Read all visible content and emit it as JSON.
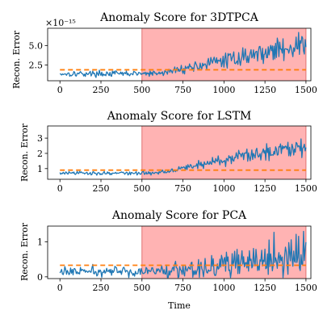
{
  "colors": {
    "signal": "#1f77b4",
    "threshold": "#ff7f0e",
    "anomaly_region": "#ff9a9a"
  },
  "chart_data": [
    {
      "type": "line",
      "title": "Anomaly Score for 3DTPCA",
      "xlabel": "",
      "ylabel": "Recon. Error",
      "offset_text": "×10⁻¹⁵",
      "xlim": [
        -75,
        1530
      ],
      "ylim": [
        0.5,
        7.2
      ],
      "xticks": [
        0,
        250,
        500,
        750,
        1000,
        1250,
        1500
      ],
      "yticks": [
        2.5,
        5.0
      ],
      "ytick_labels": [
        "2.5",
        "5.0"
      ],
      "anomaly_region": [
        500,
        1500
      ],
      "threshold": 1.9,
      "signal": {
        "x_start": 0,
        "x_end": 1500,
        "step": 5,
        "baseline": 1.4,
        "baseline_noise": 0.3,
        "ramp_start": 600,
        "end_level": 5.2,
        "end_noise": 1.3
      }
    },
    {
      "type": "line",
      "title": "Anomaly Score for LSTM",
      "xlabel": "",
      "ylabel": "Recon. Error",
      "xlim": [
        -75,
        1530
      ],
      "ylim": [
        0.3,
        3.8
      ],
      "xticks": [
        0,
        250,
        500,
        750,
        1000,
        1250,
        1500
      ],
      "yticks": [
        1,
        2,
        3
      ],
      "ytick_labels": [
        "1",
        "2",
        "3"
      ],
      "anomaly_region": [
        500,
        1500
      ],
      "threshold": 0.9,
      "signal": {
        "x_start": 0,
        "x_end": 1500,
        "step": 5,
        "baseline": 0.7,
        "baseline_noise": 0.1,
        "ramp_start": 580,
        "end_level": 2.6,
        "end_noise": 0.55
      }
    },
    {
      "type": "line",
      "title": "Anomaly Score for PCA",
      "xlabel": "Time",
      "ylabel": "Recon. Error",
      "xlim": [
        -75,
        1530
      ],
      "ylim": [
        -0.05,
        1.45
      ],
      "xticks": [
        0,
        250,
        500,
        750,
        1000,
        1250,
        1500
      ],
      "yticks": [
        0,
        1
      ],
      "ytick_labels": [
        "0",
        "1"
      ],
      "anomaly_region": [
        500,
        1500
      ],
      "threshold": 0.33,
      "signal": {
        "x_start": 0,
        "x_end": 1500,
        "step": 5,
        "baseline": 0.15,
        "baseline_noise": 0.12,
        "ramp_start": 550,
        "end_level": 0.55,
        "end_noise": 0.6
      }
    }
  ]
}
